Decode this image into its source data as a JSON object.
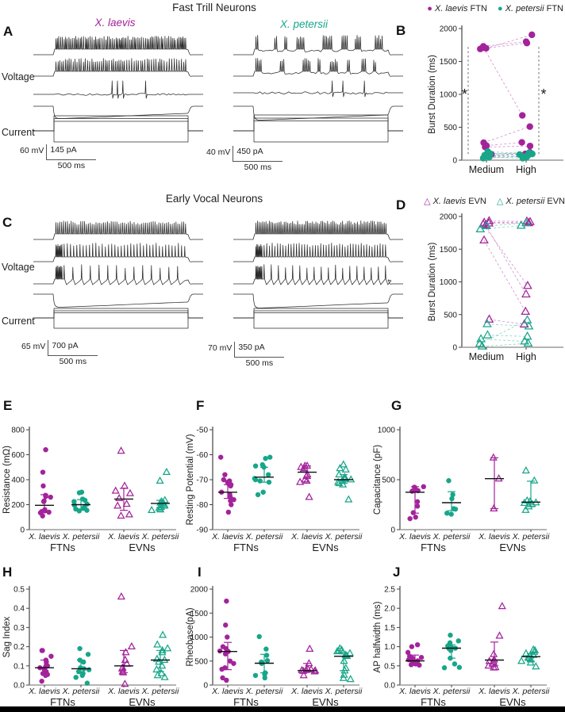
{
  "colors": {
    "laevis": "#A3239B",
    "petersii": "#17A689",
    "trace": "#2b2b2b",
    "axis": "#444444",
    "axis_light": "#9b9b9b"
  },
  "sections": {
    "ftn": {
      "title": "Fast Trill Neurons"
    },
    "evn": {
      "title": "Early Vocal Neurons"
    }
  },
  "panels": {
    "A": {
      "letter": "A",
      "voltage_label": "Voltage",
      "current_label": "Current",
      "left": {
        "species": "X. laevis",
        "profile": "tonic",
        "v_scale": "60 mV",
        "i_scale": "145 pA",
        "t_scale": "500 ms"
      },
      "right": {
        "species": "X. petersii",
        "profile": "burst",
        "v_scale": "40 mV",
        "i_scale": "450 pA",
        "t_scale": "500 ms"
      }
    },
    "C": {
      "letter": "C",
      "voltage_label": "Voltage",
      "current_label": "Current",
      "left": {
        "species": "X. laevis",
        "profile": "regular",
        "v_scale": "65 mV",
        "i_scale": "700 pA",
        "t_scale": "500 ms"
      },
      "right": {
        "species": "X. petersii",
        "profile": "regular2",
        "v_scale": "70 mV",
        "i_scale": "350 pA",
        "t_scale": "500 ms"
      }
    }
  },
  "legends": {
    "B": {
      "items": [
        {
          "marker": "circle",
          "species": "X. laevis",
          "suffix": "FTN"
        },
        {
          "marker": "circle",
          "species": "X. petersii",
          "suffix": "FTN"
        }
      ]
    },
    "D": {
      "items": [
        {
          "marker": "triangle",
          "species": "X. laevis",
          "suffix": "EVN"
        },
        {
          "marker": "triangle",
          "species": "X. petersii",
          "suffix": "EVN"
        }
      ]
    }
  },
  "chart_data": [
    {
      "id": "B",
      "letter": "B",
      "type": "paired-scatter",
      "ylabel": "Burst Duration (ms)",
      "ylim": [
        0,
        2000
      ],
      "yticks": [
        0,
        500,
        1000,
        1500,
        2000
      ],
      "ytick_labels": [
        "0",
        "500",
        "1000",
        "1500",
        "2000"
      ],
      "categories": [
        "Medium",
        "High"
      ],
      "significance": {
        "symbol": "*",
        "sides": "both"
      },
      "series": [
        {
          "name": "X. laevis FTN",
          "color": "#A3239B",
          "marker": "circle",
          "pairs": [
            [
              1700,
              1905
            ],
            [
              1730,
              1800
            ],
            [
              1690,
              1780
            ],
            [
              1710,
              680
            ],
            [
              265,
              510
            ],
            [
              220,
              270
            ],
            [
              200,
              215
            ],
            [
              90,
              120
            ],
            [
              70,
              95
            ],
            [
              55,
              60
            ]
          ]
        },
        {
          "name": "X. petersii FTN",
          "color": "#17A689",
          "marker": "circle",
          "pairs": [
            [
              130,
              95
            ],
            [
              110,
              70
            ],
            [
              95,
              110
            ],
            [
              75,
              45
            ],
            [
              60,
              85
            ],
            [
              45,
              30
            ],
            [
              30,
              55
            ]
          ]
        }
      ]
    },
    {
      "id": "D",
      "letter": "D",
      "type": "paired-scatter",
      "ylabel": "Burst Duration (ms)",
      "ylim": [
        0,
        2000
      ],
      "yticks": [
        0,
        500,
        1000,
        1500,
        2000
      ],
      "ytick_labels": [
        "0",
        "500",
        "1000",
        "1500",
        "2000"
      ],
      "categories": [
        "Medium",
        "High"
      ],
      "significance": null,
      "series": [
        {
          "name": "X. laevis EVN",
          "color": "#A3239B",
          "marker": "triangle",
          "pairs": [
            [
              1930,
              1925
            ],
            [
              1905,
              1915
            ],
            [
              1895,
              1900
            ],
            [
              1880,
              940
            ],
            [
              1870,
              810
            ],
            [
              1635,
              545
            ],
            [
              425,
              350
            ]
          ]
        },
        {
          "name": "X. petersii EVN",
          "color": "#17A689",
          "marker": "triangle",
          "pairs": [
            [
              1855,
              1900
            ],
            [
              1805,
              1860
            ],
            [
              355,
              320
            ],
            [
              185,
              165
            ],
            [
              125,
              90
            ],
            [
              55,
              415
            ],
            [
              15,
              60
            ]
          ]
        }
      ]
    },
    {
      "id": "E",
      "letter": "E",
      "type": "scatter-groups",
      "ylabel": "Resistance (mΩ)",
      "ylim": [
        0,
        800
      ],
      "yticks": [
        0,
        200,
        400,
        600,
        800
      ],
      "ytick_labels": [
        "0",
        "200",
        "400",
        "600",
        "800"
      ],
      "group_labels": [
        "FTNs",
        "EVNs"
      ],
      "groups": [
        {
          "name": "X. laevis",
          "cohort": "FTNs",
          "color": "#A3239B",
          "marker": "circle",
          "values": [
            640,
            460,
            350,
            275,
            265,
            260,
            230,
            225,
            160,
            150,
            145,
            140,
            135,
            110
          ],
          "mean": 195,
          "err": [
            150,
            280
          ]
        },
        {
          "name": "X. petersii",
          "cohort": "FTNs",
          "color": "#17A689",
          "marker": "circle",
          "values": [
            300,
            295,
            245,
            235,
            225,
            205,
            195,
            180,
            170,
            165,
            155,
            150
          ],
          "mean": 200,
          "err": [
            165,
            240
          ]
        },
        {
          "name": "X. laevis",
          "cohort": "EVNs",
          "color": "#A3239B",
          "marker": "triangle",
          "values": [
            630,
            350,
            310,
            290,
            250,
            205,
            190,
            120,
            110
          ],
          "mean": 245,
          "err": [
            155,
            330
          ]
        },
        {
          "name": "X. petersii",
          "cohort": "EVNs",
          "color": "#17A689",
          "marker": "triangle",
          "values": [
            460,
            390,
            235,
            225,
            215,
            210,
            200,
            190,
            180,
            170,
            160,
            155
          ],
          "mean": 210,
          "err": [
            175,
            235
          ]
        }
      ]
    },
    {
      "id": "F",
      "letter": "F",
      "type": "scatter-groups",
      "ylabel": "Resting Potential (mV)",
      "ylim": [
        -90,
        -50
      ],
      "yticks": [
        -90,
        -80,
        -70,
        -60,
        -50
      ],
      "ytick_labels": [
        "-90",
        "-80",
        "-70",
        "-60",
        "-50"
      ],
      "group_labels": [
        "FTNs",
        "EVNs"
      ],
      "groups": [
        {
          "name": "X. laevis",
          "cohort": "FTNs",
          "color": "#A3239B",
          "marker": "circle",
          "values": [
            -61,
            -68,
            -70,
            -70.5,
            -71,
            -71.5,
            -72,
            -72.5,
            -75,
            -76,
            -77,
            -78,
            -78.5,
            -80,
            -83
          ],
          "mean": -75,
          "err": [
            -77.5,
            -72
          ]
        },
        {
          "name": "X. petersii",
          "cohort": "FTNs",
          "color": "#17A689",
          "marker": "circle",
          "values": [
            -61,
            -61.5,
            -64,
            -64.5,
            -65,
            -68,
            -69.5,
            -70,
            -70.5,
            -71,
            -75,
            -76
          ],
          "mean": -69,
          "err": [
            -71,
            -65
          ]
        },
        {
          "name": "X. laevis",
          "cohort": "EVNs",
          "color": "#A3239B",
          "marker": "triangle",
          "values": [
            -64.5,
            -64.5,
            -65,
            -65.5,
            -66,
            -68,
            -68.5,
            -70,
            -70.5,
            -71,
            -77
          ],
          "mean": -67,
          "err": [
            -69.5,
            -64.5
          ]
        },
        {
          "name": "X. petersii",
          "cohort": "EVNs",
          "color": "#17A689",
          "marker": "triangle",
          "values": [
            -64,
            -65.5,
            -66,
            -68,
            -69,
            -69.5,
            -70,
            -70,
            -70.5,
            -71,
            -71.5,
            -72,
            -78
          ],
          "mean": -70,
          "err": [
            -71.5,
            -68
          ]
        }
      ]
    },
    {
      "id": "G",
      "letter": "G",
      "type": "scatter-groups",
      "ylabel": "Capacitance (pF)",
      "ylim": [
        0,
        1000
      ],
      "yticks": [
        0,
        500,
        1000
      ],
      "ytick_labels": [
        "0",
        "500",
        "1000"
      ],
      "group_labels": [
        "FTNs",
        "EVNs"
      ],
      "groups": [
        {
          "name": "X. laevis",
          "cohort": "FTNs",
          "color": "#A3239B",
          "marker": "circle",
          "values": [
            430,
            425,
            405,
            395,
            390,
            385,
            280,
            235,
            170,
            125,
            110
          ],
          "mean": 375,
          "err": [
            165,
            430
          ]
        },
        {
          "name": "X. petersii",
          "cohort": "FTNs",
          "color": "#17A689",
          "marker": "circle",
          "values": [
            490,
            350,
            310,
            210,
            205,
            165,
            155
          ],
          "mean": 270,
          "err": [
            190,
            380
          ]
        },
        {
          "name": "X. laevis",
          "cohort": "EVNs",
          "color": "#A3239B",
          "marker": "triangle",
          "values": [
            720,
            510,
            210
          ],
          "mean": 510,
          "err": [
            210,
            720
          ]
        },
        {
          "name": "X. petersii",
          "cohort": "EVNs",
          "color": "#17A689",
          "marker": "triangle",
          "values": [
            590,
            490,
            290,
            280,
            270,
            265,
            255,
            230,
            195
          ],
          "mean": 275,
          "err": [
            230,
            485
          ]
        }
      ]
    },
    {
      "id": "H",
      "letter": "H",
      "type": "scatter-groups",
      "ylabel": "Sag Index",
      "ylim": [
        0,
        0.5
      ],
      "yticks": [
        0,
        0.1,
        0.2,
        0.3,
        0.4,
        0.5
      ],
      "ytick_labels": [
        "0.0",
        "0.1",
        "0.2",
        "0.3",
        "0.4",
        "0.5"
      ],
      "group_labels": [
        "FTNs",
        "EVNs"
      ],
      "groups": [
        {
          "name": "X. laevis",
          "cohort": "FTNs",
          "color": "#A3239B",
          "marker": "circle",
          "values": [
            0.18,
            0.18,
            0.15,
            0.13,
            0.12,
            0.1,
            0.095,
            0.09,
            0.085,
            0.08,
            0.07,
            0.06,
            0.055,
            0.05,
            0.02
          ],
          "mean": 0.09,
          "err": [
            0.06,
            0.13
          ]
        },
        {
          "name": "X. petersii",
          "cohort": "FTNs",
          "color": "#17A689",
          "marker": "circle",
          "values": [
            0.19,
            0.16,
            0.13,
            0.12,
            0.09,
            0.085,
            0.08,
            0.07,
            0.06,
            0.05,
            0.04,
            0.01
          ],
          "mean": 0.085,
          "err": [
            0.06,
            0.13
          ]
        },
        {
          "name": "X. laevis",
          "cohort": "EVNs",
          "color": "#A3239B",
          "marker": "triangle",
          "values": [
            0.46,
            0.2,
            0.17,
            0.13,
            0.11,
            0.09,
            0.085,
            0.07,
            0.065,
            0.005
          ],
          "mean": 0.1,
          "err": [
            0.065,
            0.18
          ]
        },
        {
          "name": "X. petersii",
          "cohort": "EVNs",
          "color": "#17A689",
          "marker": "triangle",
          "values": [
            0.26,
            0.21,
            0.19,
            0.18,
            0.17,
            0.135,
            0.13,
            0.12,
            0.1,
            0.08,
            0.06,
            0.05,
            0.04
          ],
          "mean": 0.13,
          "err": [
            0.07,
            0.18
          ]
        }
      ]
    },
    {
      "id": "I",
      "letter": "I",
      "type": "scatter-groups",
      "ylabel": "Rheobase(pA)",
      "ylim": [
        0,
        2000
      ],
      "yticks": [
        0,
        500,
        1000,
        1500,
        2000
      ],
      "ytick_labels": [
        "0",
        "500",
        "1000",
        "1500",
        "2000"
      ],
      "group_labels": [
        "FTNs",
        "EVNs"
      ],
      "groups": [
        {
          "name": "X. laevis",
          "cohort": "FTNs",
          "color": "#A3239B",
          "marker": "circle",
          "values": [
            1750,
            1250,
            1000,
            800,
            760,
            710,
            700,
            650,
            500,
            450,
            360,
            330,
            150,
            100
          ],
          "mean": 700,
          "err": [
            320,
            890
          ]
        },
        {
          "name": "X. petersii",
          "cohort": "FTNs",
          "color": "#17A689",
          "marker": "circle",
          "values": [
            1010,
            750,
            620,
            510,
            480,
            450,
            255,
            225,
            200,
            150
          ],
          "mean": 455,
          "err": [
            255,
            640
          ]
        },
        {
          "name": "X. laevis",
          "cohort": "EVNs",
          "color": "#A3239B",
          "marker": "triangle",
          "values": [
            750,
            450,
            330,
            320,
            310,
            305,
            300,
            290,
            280,
            200
          ],
          "mean": 300,
          "err": [
            280,
            450
          ]
        },
        {
          "name": "X. petersii",
          "cohort": "EVNs",
          "color": "#17A689",
          "marker": "triangle",
          "values": [
            760,
            730,
            710,
            700,
            660,
            625,
            610,
            600,
            500,
            350,
            300,
            210,
            140,
            120
          ],
          "mean": 600,
          "err": [
            300,
            650
          ]
        }
      ]
    },
    {
      "id": "J",
      "letter": "J",
      "type": "scatter-groups",
      "ylabel": "AP halfwidth (ms)",
      "ylim": [
        0,
        2.5
      ],
      "yticks": [
        0,
        0.5,
        1.0,
        1.5,
        2.0,
        2.5
      ],
      "ytick_labels": [
        "0.0",
        "0.5",
        "1.0",
        "1.5",
        "2.0",
        "2.5"
      ],
      "group_labels": [
        "FTNs",
        "EVNs"
      ],
      "groups": [
        {
          "name": "X. laevis",
          "cohort": "FTNs",
          "color": "#A3239B",
          "marker": "circle",
          "values": [
            1.05,
            1.0,
            0.85,
            0.75,
            0.72,
            0.7,
            0.66,
            0.63,
            0.62,
            0.6,
            0.58,
            0.56,
            0.55,
            0.53,
            0.52
          ],
          "mean": 0.63,
          "err": [
            0.55,
            0.78
          ]
        },
        {
          "name": "X. petersii",
          "cohort": "FTNs",
          "color": "#17A689",
          "marker": "circle",
          "values": [
            1.3,
            1.15,
            1.1,
            1.02,
            0.98,
            0.96,
            0.95,
            0.9,
            0.7,
            0.55,
            0.46,
            0.45
          ],
          "mean": 0.96,
          "err": [
            0.7,
            1.05
          ]
        },
        {
          "name": "X. laevis",
          "cohort": "EVNs",
          "color": "#A3239B",
          "marker": "triangle",
          "values": [
            2.05,
            1.28,
            0.8,
            0.66,
            0.62,
            0.6,
            0.55,
            0.5,
            0.46,
            0.45
          ],
          "mean": 0.65,
          "err": [
            0.5,
            1.12
          ]
        },
        {
          "name": "X. petersii",
          "cohort": "EVNs",
          "color": "#17A689",
          "marker": "triangle",
          "values": [
            0.92,
            0.9,
            0.86,
            0.82,
            0.78,
            0.76,
            0.72,
            0.7,
            0.66,
            0.62,
            0.58,
            0.48
          ],
          "mean": 0.74,
          "err": [
            0.62,
            0.82
          ]
        }
      ]
    }
  ]
}
